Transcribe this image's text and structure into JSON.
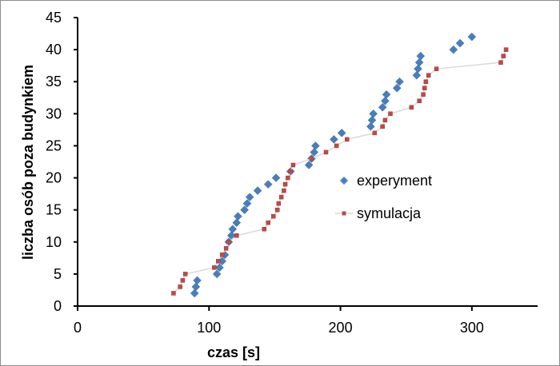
{
  "chart_data": {
    "type": "scatter",
    "title": "",
    "xlabel": "czas [s]",
    "ylabel": "liczba osób poza budynkiem",
    "xlim": [
      0,
      350
    ],
    "ylim": [
      0,
      45
    ],
    "x_ticks": [
      0,
      100,
      200,
      300
    ],
    "y_ticks": [
      0,
      5,
      10,
      15,
      20,
      25,
      30,
      35,
      40,
      45
    ],
    "grid": false,
    "legend_position": "center-right",
    "series": [
      {
        "name": "experyment",
        "marker": "diamond",
        "line": false,
        "color": "#4a7ebb",
        "points": [
          [
            89,
            2
          ],
          [
            90,
            3
          ],
          [
            91,
            4
          ],
          [
            106,
            5
          ],
          [
            108,
            6
          ],
          [
            110,
            7
          ],
          [
            112,
            8
          ],
          [
            115,
            10
          ],
          [
            117,
            11
          ],
          [
            118,
            12
          ],
          [
            121,
            13
          ],
          [
            122,
            14
          ],
          [
            127,
            15
          ],
          [
            129,
            16
          ],
          [
            131,
            17
          ],
          [
            137,
            18
          ],
          [
            145,
            19
          ],
          [
            151,
            20
          ],
          [
            162,
            21
          ],
          [
            176,
            22
          ],
          [
            178,
            23
          ],
          [
            180,
            24
          ],
          [
            181,
            25
          ],
          [
            195,
            26
          ],
          [
            201,
            27
          ],
          [
            223,
            28
          ],
          [
            224,
            29
          ],
          [
            225,
            30
          ],
          [
            232,
            31
          ],
          [
            234,
            32
          ],
          [
            235,
            33
          ],
          [
            243,
            34
          ],
          [
            245,
            35
          ],
          [
            258,
            36
          ],
          [
            259,
            37
          ],
          [
            260,
            38
          ],
          [
            261,
            39
          ],
          [
            286,
            40
          ],
          [
            291,
            41
          ],
          [
            300,
            42
          ]
        ]
      },
      {
        "name": "symulacja",
        "marker": "square",
        "line": true,
        "color": "#be4b48",
        "line_color": "#d9d9d9",
        "points": [
          [
            73,
            2
          ],
          [
            78,
            3
          ],
          [
            80,
            4
          ],
          [
            82,
            5
          ],
          [
            104,
            6
          ],
          [
            107,
            7
          ],
          [
            110,
            8
          ],
          [
            113,
            9
          ],
          [
            115,
            10
          ],
          [
            121,
            11
          ],
          [
            142,
            12
          ],
          [
            145,
            13
          ],
          [
            149,
            14
          ],
          [
            152,
            15
          ],
          [
            153,
            16
          ],
          [
            155,
            17
          ],
          [
            157,
            18
          ],
          [
            158,
            19
          ],
          [
            160,
            20
          ],
          [
            162,
            21
          ],
          [
            164,
            22
          ],
          [
            178,
            23
          ],
          [
            189,
            24
          ],
          [
            197,
            25
          ],
          [
            205,
            26
          ],
          [
            226,
            27
          ],
          [
            232,
            28
          ],
          [
            234,
            29
          ],
          [
            238,
            30
          ],
          [
            254,
            31
          ],
          [
            260,
            32
          ],
          [
            263,
            33
          ],
          [
            264,
            34
          ],
          [
            265,
            35
          ],
          [
            267,
            36
          ],
          [
            273,
            37
          ],
          [
            322,
            38
          ],
          [
            324,
            39
          ],
          [
            326,
            40
          ]
        ]
      }
    ]
  }
}
